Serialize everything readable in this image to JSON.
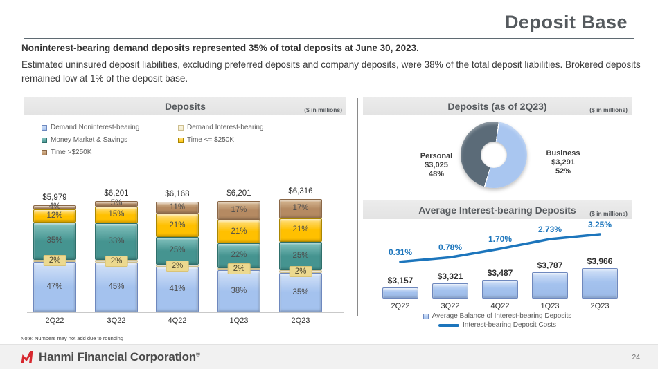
{
  "slide": {
    "title": "Deposit Base",
    "headline": "Noninterest-bearing demand deposits represented 35% of total deposits at June 30, 2023.",
    "body": "Estimated uninsured deposit liabilities, excluding preferred deposits and company deposits, were 38% of the total deposit liabilities. Brokered deposits remained low at 1% of the deposit base.",
    "note": "Note: Numbers may not add due to rounding",
    "footer": {
      "company": "Hanmi Financial Corporation",
      "trademark": "®",
      "page": "24"
    }
  },
  "colors": {
    "brand_red": "#d7282f",
    "title_gray": "#555a5e",
    "rule_gray": "#5f6a72",
    "header_bar_bg": "#e8e8e8",
    "line_blue": "#1c75bc"
  },
  "chart_data": [
    {
      "type": "bar",
      "stacked": true,
      "title": "Deposits",
      "units": "($ in millions)",
      "categories": [
        "2Q22",
        "3Q22",
        "4Q22",
        "1Q23",
        "2Q23"
      ],
      "totals": [
        5979,
        6201,
        6168,
        6201,
        6316
      ],
      "totals_display": [
        "$5,979",
        "$6,201",
        "$6,168",
        "$6,201",
        "$6,316"
      ],
      "value_format": "percent_of_total",
      "grid": false,
      "legend_position": "top",
      "legend_columns": [
        [
          0,
          2,
          4
        ],
        [
          1,
          3
        ]
      ],
      "series": [
        {
          "name": "Demand Noninterest-bearing",
          "color": "#a4c2ee",
          "light": "#d3e2f8",
          "border": "#6e88be",
          "values": [
            47,
            45,
            41,
            38,
            35
          ],
          "label_style": "inside"
        },
        {
          "name": "Demand Interest-bearing",
          "color": "#f3eccb",
          "light": "#fbf7e6",
          "border": "#cdbe8e",
          "values": [
            2,
            2,
            2,
            2,
            2
          ],
          "label_style": "tag"
        },
        {
          "name": "Money Market & Savings",
          "color": "#459490",
          "light": "#83c2be",
          "border": "#2e6f6b",
          "values": [
            35,
            33,
            25,
            22,
            25
          ],
          "label_style": "inside"
        },
        {
          "name": "Time <= $250K",
          "color": "#ffc000",
          "light": "#ffdf7e",
          "border": "#a98600",
          "values": [
            12,
            15,
            21,
            21,
            21
          ],
          "label_style": "inside"
        },
        {
          "name": "Time >$250K",
          "color": "#b58a62",
          "light": "#d9bc98",
          "border": "#8a6747",
          "values": [
            4,
            5,
            11,
            17,
            17
          ],
          "label_style": "inside"
        }
      ]
    },
    {
      "type": "pie",
      "donut": true,
      "title": "Deposits (as of 2Q23)",
      "units": "($ in millions)",
      "start_angle_deg": 8,
      "draw_order": [
        1,
        0
      ],
      "slices": [
        {
          "name": "Personal",
          "value": 3025,
          "value_display": "$3,025",
          "pct": 48,
          "pct_display": "48%",
          "color": "#5b6b78"
        },
        {
          "name": "Business",
          "value": 3291,
          "value_display": "$3,291",
          "pct": 52,
          "pct_display": "52%",
          "color": "#a9c6f0"
        }
      ]
    },
    {
      "type": "bar",
      "overlay": "line",
      "title": "Average Interest-bearing Deposits",
      "units": "($ in millions)",
      "categories": [
        "2Q22",
        "3Q22",
        "4Q22",
        "1Q23",
        "2Q23"
      ],
      "bars": {
        "name": "Average Balance of Interest-bearing Deposits",
        "values": [
          3157,
          3321,
          3487,
          3787,
          3966
        ],
        "labels": [
          "$3,157",
          "$3,321",
          "$3,487",
          "$3,787",
          "$3,966"
        ],
        "axis_min": 2700,
        "axis_max": 4100,
        "color": "#a4c2ee"
      },
      "line": {
        "name": "Interest-bearing Deposit Costs",
        "values": [
          0.31,
          0.78,
          1.7,
          2.73,
          3.25
        ],
        "labels": [
          "0.31%",
          "0.78%",
          "1.70%",
          "2.73%",
          "3.25%"
        ],
        "axis_min": 0,
        "axis_max": 4,
        "color": "#1c75bc"
      },
      "grid": false,
      "legend_position": "bottom",
      "legend": [
        {
          "label": "Average Balance of Interest-bearing Deposits",
          "marker": "square"
        },
        {
          "label": "Interest-bearing Deposit Costs",
          "marker": "line"
        }
      ]
    }
  ]
}
